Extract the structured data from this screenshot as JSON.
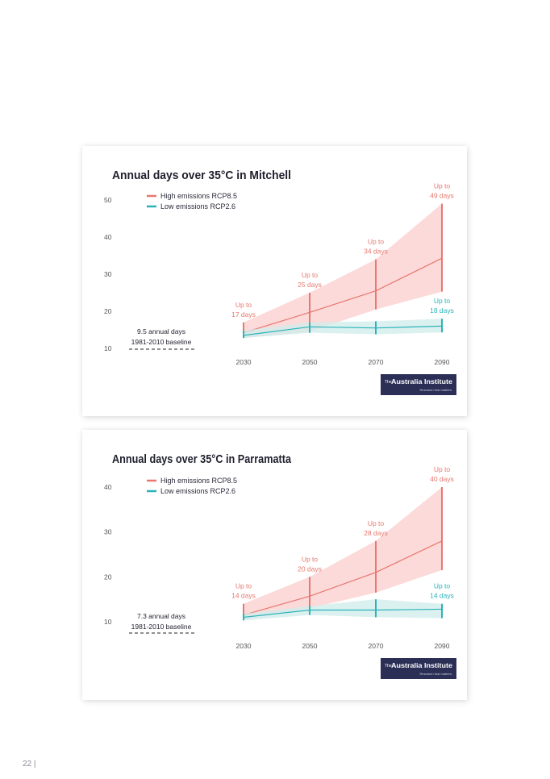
{
  "page": {
    "page_number": "22 |"
  },
  "logo": {
    "brand_the": "The",
    "brand_name": "Australia Institute",
    "tagline": "Research that matters."
  },
  "colors": {
    "high": "#e8776f",
    "high_fill": "#fcd3d2",
    "low": "#2bb3ba",
    "low_fill": "#cfeceb",
    "logo_bg": "#2b2f55"
  },
  "chart_data": [
    {
      "type": "area",
      "title": "Annual days over 35°C in Mitchell",
      "x": [
        "2030",
        "2050",
        "2070",
        "2090"
      ],
      "ylim": [
        10,
        50
      ],
      "yticks": [
        "10",
        "20",
        "30",
        "40",
        "50"
      ],
      "grid": false,
      "legend_position": "top-left",
      "series": [
        {
          "name": "High emissions RCP8.5",
          "mid": [
            14.2,
            19.7,
            25.5,
            34.3
          ],
          "low": [
            12.8,
            14.5,
            20.5,
            25.3
          ],
          "high": [
            17,
            25,
            34,
            49
          ]
        },
        {
          "name": "Low emissions RCP2.6",
          "mid": [
            13.5,
            15.8,
            15.5,
            16.0
          ],
          "low": [
            12.8,
            14.2,
            13.8,
            14.3
          ],
          "high": [
            14.8,
            17.0,
            17.3,
            18
          ]
        }
      ],
      "annotations": [
        {
          "series": 0,
          "x": "2030",
          "line1": "Up to",
          "line2": "17 days"
        },
        {
          "series": 0,
          "x": "2050",
          "line1": "Up to",
          "line2": "25 days"
        },
        {
          "series": 0,
          "x": "2070",
          "line1": "Up to",
          "line2": "34 days"
        },
        {
          "series": 0,
          "x": "2090",
          "line1": "Up to",
          "line2": "49 days"
        },
        {
          "series": 1,
          "x": "2090",
          "line1": "Up to",
          "line2": "18 days"
        }
      ],
      "baseline": {
        "value": 9.5,
        "line1": "9.5 annual days",
        "line2": "1981-2010 baseline"
      }
    },
    {
      "type": "area",
      "title": "Annual days over 35°C in Parramatta",
      "x": [
        "2030",
        "2050",
        "2070",
        "2090"
      ],
      "ylim": [
        10,
        40
      ],
      "yticks": [
        "10",
        "20",
        "30",
        "40"
      ],
      "grid": false,
      "legend_position": "top-left",
      "series": [
        {
          "name": "High emissions RCP8.5",
          "mid": [
            11.5,
            15.7,
            21,
            28
          ],
          "low": [
            10.5,
            13,
            16.5,
            21.5
          ],
          "high": [
            14,
            20,
            28,
            40
          ]
        },
        {
          "name": "Low emissions RCP2.6",
          "mid": [
            11,
            12.6,
            12.6,
            12.8
          ],
          "low": [
            10.3,
            11.5,
            11.0,
            10.8
          ],
          "high": [
            11.8,
            13.5,
            15.0,
            14
          ]
        }
      ],
      "annotations": [
        {
          "series": 0,
          "x": "2030",
          "line1": "Up to",
          "line2": "14 days"
        },
        {
          "series": 0,
          "x": "2050",
          "line1": "Up to",
          "line2": "20 days"
        },
        {
          "series": 0,
          "x": "2070",
          "line1": "Up to",
          "line2": "28 days"
        },
        {
          "series": 0,
          "x": "2090",
          "line1": "Up to",
          "line2": "40 days"
        },
        {
          "series": 1,
          "x": "2090",
          "line1": "Up to",
          "line2": "14 days"
        }
      ],
      "baseline": {
        "value": 7.3,
        "line1": "7.3 annual days",
        "line2": "1981-2010 baseline"
      }
    }
  ]
}
